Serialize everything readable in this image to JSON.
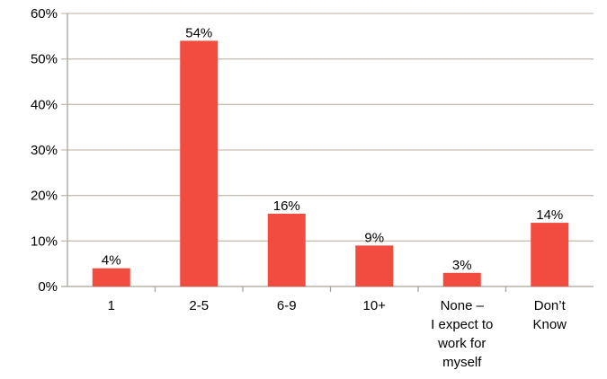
{
  "chart_data": {
    "type": "bar",
    "categories": [
      [
        "1"
      ],
      [
        "2-5"
      ],
      [
        "6-9"
      ],
      [
        "10+"
      ],
      [
        "None –",
        "I expect to",
        "work for",
        "myself"
      ],
      [
        "Don’t",
        "Know"
      ]
    ],
    "values": [
      4,
      54,
      16,
      9,
      3,
      14
    ],
    "data_labels": [
      "4%",
      "54%",
      "16%",
      "9%",
      "3%",
      "14%"
    ],
    "y_ticks": [
      0,
      10,
      20,
      30,
      40,
      50,
      60
    ],
    "y_tick_labels": [
      "0%",
      "10%",
      "20%",
      "30%",
      "40%",
      "50%",
      "60%"
    ],
    "ylim": [
      0,
      60
    ],
    "title": "",
    "xlabel": "",
    "ylabel": "",
    "grid": true,
    "legend": "none",
    "colors": {
      "bar": "#F24B3F",
      "grid": "#C9BFB3",
      "axis": "#A9A39B"
    }
  }
}
